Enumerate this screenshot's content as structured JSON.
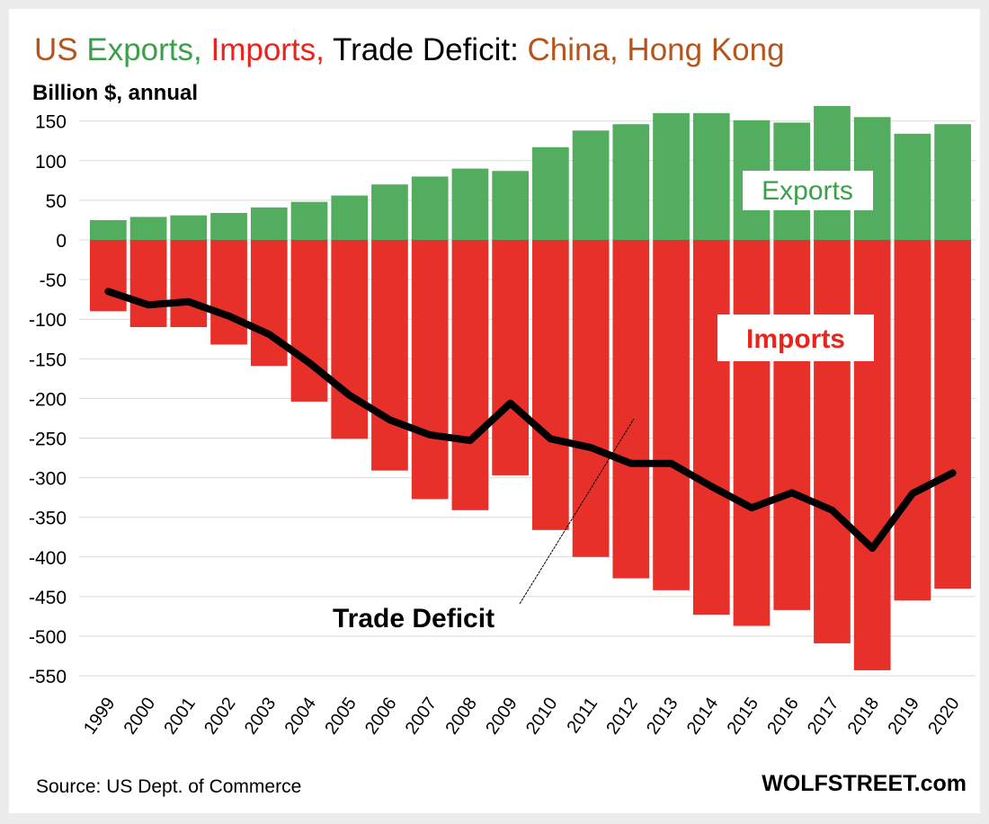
{
  "chart_data": {
    "type": "bar",
    "title_parts": [
      {
        "text": "US ",
        "color": "#b5541c"
      },
      {
        "text": "Exports, ",
        "color": "#3aa04a"
      },
      {
        "text": "Imports, ",
        "color": "#e8241c"
      },
      {
        "text": "Trade Deficit: ",
        "color": "#000000"
      },
      {
        "text": "China, Hong Kong",
        "color": "#b5541c"
      }
    ],
    "subtitle": "Billion $, annual",
    "categories": [
      "1999",
      "2000",
      "2001",
      "2002",
      "2003",
      "2004",
      "2005",
      "2006",
      "2007",
      "2008",
      "2009",
      "2010",
      "2011",
      "2012",
      "2013",
      "2014",
      "2015",
      "2016",
      "2017",
      "2018",
      "2019",
      "2020"
    ],
    "series": [
      {
        "name": "Exports",
        "type": "bar",
        "color": "#52ad5e",
        "values": [
          25,
          29,
          31,
          34,
          41,
          48,
          56,
          70,
          80,
          90,
          87,
          117,
          138,
          146,
          160,
          160,
          151,
          148,
          169,
          155,
          134,
          146
        ]
      },
      {
        "name": "Imports",
        "type": "bar",
        "color": "#e8302a",
        "values": [
          -90,
          -110,
          -110,
          -132,
          -159,
          -204,
          -251,
          -291,
          -327,
          -341,
          -297,
          -366,
          -400,
          -427,
          -442,
          -473,
          -487,
          -467,
          -509,
          -543,
          -455,
          -440
        ]
      },
      {
        "name": "Trade Deficit",
        "type": "line",
        "color": "#000000",
        "values": [
          -65,
          -82,
          -78,
          -96,
          -119,
          -155,
          -196,
          -227,
          -246,
          -253,
          -206,
          -251,
          -262,
          -282,
          -282,
          -311,
          -338,
          -319,
          -341,
          -389,
          -320,
          -294
        ]
      }
    ],
    "yticks": [
      150,
      100,
      50,
      0,
      -50,
      -100,
      -150,
      -200,
      -250,
      -300,
      -350,
      -400,
      -450,
      -500,
      -550
    ],
    "ylim": [
      -560,
      170
    ],
    "grid": true,
    "xlabel": "",
    "ylabel": "",
    "annotations": {
      "exports": "Exports",
      "imports": "Imports",
      "deficit": "Trade Deficit"
    },
    "source": "Source: US Dept. of Commerce",
    "brand": "WOLFSTREET.com"
  }
}
